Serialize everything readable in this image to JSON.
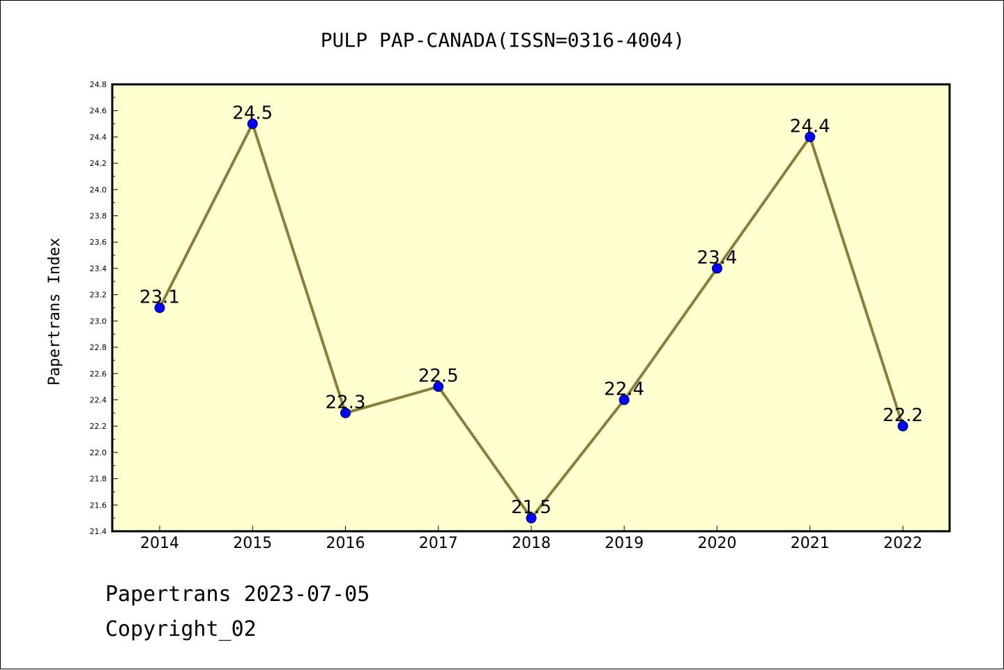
{
  "chart_data": {
    "type": "line",
    "title": "PULP PAP-CANADA(ISSN=0316-4004)",
    "xlabel": "",
    "ylabel": "Papertrans Index",
    "categories": [
      "2014",
      "2015",
      "2016",
      "2017",
      "2018",
      "2019",
      "2020",
      "2021",
      "2022"
    ],
    "series": [
      {
        "values": [
          23.1,
          24.5,
          22.3,
          22.5,
          21.5,
          22.4,
          23.4,
          24.4,
          22.2
        ]
      }
    ],
    "data_labels": [
      "23.1",
      "24.5",
      "22.3",
      "22.5",
      "21.5",
      "22.4",
      "23.4",
      "24.4",
      "22.2"
    ],
    "ylim": [
      21.4,
      24.8
    ],
    "yticks": [
      "21.4",
      "21.6",
      "21.8",
      "22.0",
      "22.2",
      "22.4",
      "22.6",
      "22.8",
      "23.0",
      "23.2",
      "23.4",
      "23.6",
      "23.8",
      "24.0",
      "24.2",
      "24.4",
      "24.6",
      "24.8"
    ],
    "grid": false,
    "legend": "none",
    "colors": {
      "line": "#8B7D3A",
      "marker": "#0000FF",
      "plot_background": "#FFFFD0"
    }
  },
  "footer": {
    "line1": "Papertrans 2023-07-05",
    "line2": "Copyright_02"
  }
}
